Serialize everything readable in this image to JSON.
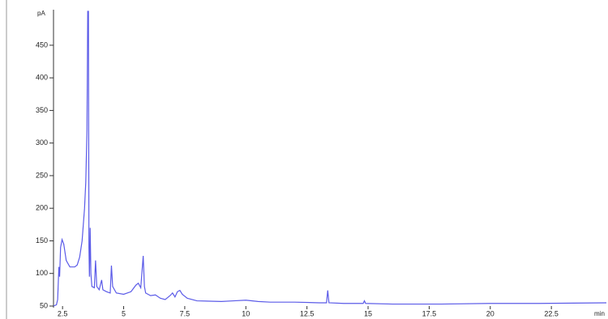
{
  "chart_data": {
    "type": "line",
    "y_label": "pA",
    "x_label": "min",
    "color": "#5b5be8",
    "x": [
      2.13,
      2.25,
      2.3,
      2.35,
      2.38,
      2.42,
      2.48,
      2.55,
      2.65,
      2.8,
      3.0,
      3.1,
      3.2,
      3.3,
      3.4,
      3.45,
      3.5,
      3.53,
      3.56,
      3.58,
      3.6,
      3.63,
      3.66,
      3.7,
      3.8,
      3.85,
      3.9,
      4.0,
      4.1,
      4.15,
      4.3,
      4.45,
      4.5,
      4.55,
      4.7,
      5.0,
      5.3,
      5.5,
      5.6,
      5.7,
      5.8,
      5.85,
      5.9,
      6.0,
      6.1,
      6.3,
      6.5,
      6.7,
      6.9,
      7.0,
      7.1,
      7.2,
      7.3,
      7.4,
      7.6,
      8.0,
      9.0,
      9.5,
      10.0,
      10.5,
      11.0,
      12.0,
      13.0,
      13.3,
      13.35,
      13.4,
      14.0,
      14.8,
      14.85,
      14.9,
      16.0,
      18.0,
      20.0,
      22.0,
      24.75
    ],
    "values": [
      50,
      52,
      60,
      110,
      95,
      140,
      152,
      145,
      120,
      110,
      110,
      113,
      125,
      150,
      200,
      240,
      320,
      502,
      502,
      140,
      95,
      170,
      100,
      80,
      78,
      120,
      80,
      75,
      90,
      75,
      72,
      70,
      112,
      80,
      70,
      68,
      72,
      82,
      85,
      78,
      127,
      80,
      70,
      68,
      66,
      67,
      62,
      60,
      66,
      70,
      64,
      72,
      74,
      68,
      62,
      58,
      57,
      58,
      59,
      57,
      56,
      56,
      55,
      55,
      74,
      55,
      54,
      54,
      58,
      54,
      53,
      53,
      54,
      54,
      55
    ],
    "xlim": [
      2.13,
      24.75
    ],
    "ylim": [
      50,
      502
    ],
    "xticks": [
      2.5,
      5,
      7.5,
      10,
      12.5,
      15,
      17.5,
      20,
      22.5
    ],
    "yticks": [
      50,
      100,
      150,
      200,
      250,
      300,
      350,
      400,
      450
    ]
  }
}
